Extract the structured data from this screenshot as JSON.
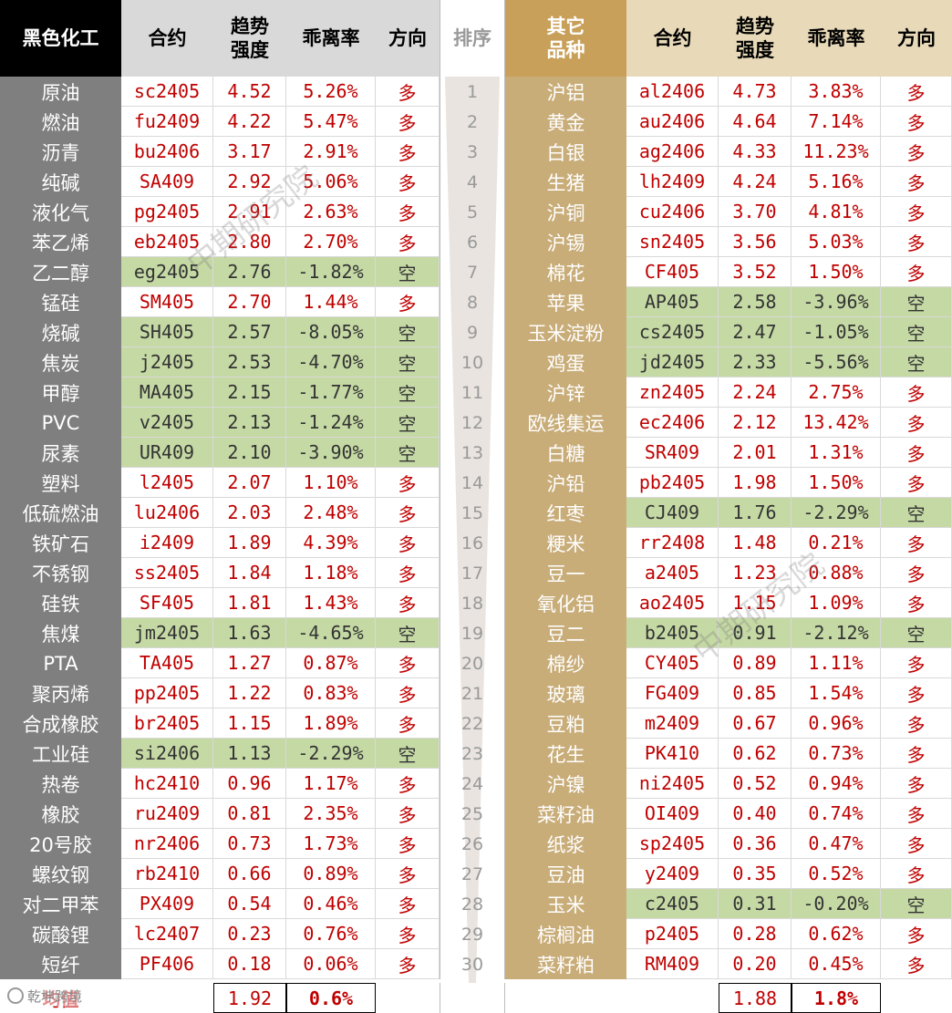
{
  "headers": {
    "cat1": "黑色化工",
    "contract": "合约",
    "strength_l1": "趋势",
    "strength_l2": "强度",
    "deviation": "乖离率",
    "direction": "方向",
    "rank": "排序",
    "cat2_l1": "其它",
    "cat2_l2": "品种"
  },
  "left_rows": [
    {
      "name": "原油",
      "contract": "sc2405",
      "strength": "4.52",
      "deviation": "5.26%",
      "direction": "多",
      "short": false
    },
    {
      "name": "燃油",
      "contract": "fu2409",
      "strength": "4.22",
      "deviation": "5.47%",
      "direction": "多",
      "short": false
    },
    {
      "name": "沥青",
      "contract": "bu2406",
      "strength": "3.17",
      "deviation": "2.91%",
      "direction": "多",
      "short": false
    },
    {
      "name": "纯碱",
      "contract": "SA409",
      "strength": "2.92",
      "deviation": "5.06%",
      "direction": "多",
      "short": false
    },
    {
      "name": "液化气",
      "contract": "pg2405",
      "strength": "2.91",
      "deviation": "2.63%",
      "direction": "多",
      "short": false
    },
    {
      "name": "苯乙烯",
      "contract": "eb2405",
      "strength": "2.80",
      "deviation": "2.70%",
      "direction": "多",
      "short": false
    },
    {
      "name": "乙二醇",
      "contract": "eg2405",
      "strength": "2.76",
      "deviation": "-1.82%",
      "direction": "空",
      "short": true
    },
    {
      "name": "锰硅",
      "contract": "SM405",
      "strength": "2.70",
      "deviation": "1.44%",
      "direction": "多",
      "short": false
    },
    {
      "name": "烧碱",
      "contract": "SH405",
      "strength": "2.57",
      "deviation": "-8.05%",
      "direction": "空",
      "short": true
    },
    {
      "name": "焦炭",
      "contract": "j2405",
      "strength": "2.53",
      "deviation": "-4.70%",
      "direction": "空",
      "short": true
    },
    {
      "name": "甲醇",
      "contract": "MA405",
      "strength": "2.15",
      "deviation": "-1.77%",
      "direction": "空",
      "short": true
    },
    {
      "name": "PVC",
      "contract": "v2405",
      "strength": "2.13",
      "deviation": "-1.24%",
      "direction": "空",
      "short": true
    },
    {
      "name": "尿素",
      "contract": "UR409",
      "strength": "2.10",
      "deviation": "-3.90%",
      "direction": "空",
      "short": true
    },
    {
      "name": "塑料",
      "contract": "l2405",
      "strength": "2.07",
      "deviation": "1.10%",
      "direction": "多",
      "short": false
    },
    {
      "name": "低硫燃油",
      "contract": "lu2406",
      "strength": "2.03",
      "deviation": "2.48%",
      "direction": "多",
      "short": false
    },
    {
      "name": "铁矿石",
      "contract": "i2409",
      "strength": "1.89",
      "deviation": "4.39%",
      "direction": "多",
      "short": false
    },
    {
      "name": "不锈钢",
      "contract": "ss2405",
      "strength": "1.84",
      "deviation": "1.18%",
      "direction": "多",
      "short": false
    },
    {
      "name": "硅铁",
      "contract": "SF405",
      "strength": "1.81",
      "deviation": "1.43%",
      "direction": "多",
      "short": false
    },
    {
      "name": "焦煤",
      "contract": "jm2405",
      "strength": "1.63",
      "deviation": "-4.65%",
      "direction": "空",
      "short": true
    },
    {
      "name": "PTA",
      "contract": "TA405",
      "strength": "1.27",
      "deviation": "0.87%",
      "direction": "多",
      "short": false
    },
    {
      "name": "聚丙烯",
      "contract": "pp2405",
      "strength": "1.22",
      "deviation": "0.83%",
      "direction": "多",
      "short": false
    },
    {
      "name": "合成橡胶",
      "contract": "br2405",
      "strength": "1.15",
      "deviation": "1.89%",
      "direction": "多",
      "short": false
    },
    {
      "name": "工业硅",
      "contract": "si2406",
      "strength": "1.13",
      "deviation": "-2.29%",
      "direction": "空",
      "short": true
    },
    {
      "name": "热卷",
      "contract": "hc2410",
      "strength": "0.96",
      "deviation": "1.17%",
      "direction": "多",
      "short": false
    },
    {
      "name": "橡胶",
      "contract": "ru2409",
      "strength": "0.81",
      "deviation": "2.35%",
      "direction": "多",
      "short": false
    },
    {
      "name": "20号胶",
      "contract": "nr2406",
      "strength": "0.73",
      "deviation": "1.73%",
      "direction": "多",
      "short": false
    },
    {
      "name": "螺纹钢",
      "contract": "rb2410",
      "strength": "0.66",
      "deviation": "0.89%",
      "direction": "多",
      "short": false
    },
    {
      "name": "对二甲苯",
      "contract": "PX409",
      "strength": "0.54",
      "deviation": "0.46%",
      "direction": "多",
      "short": false
    },
    {
      "name": "碳酸锂",
      "contract": "lc2407",
      "strength": "0.23",
      "deviation": "0.76%",
      "direction": "多",
      "short": false
    },
    {
      "name": "短纤",
      "contract": "PF406",
      "strength": "0.18",
      "deviation": "0.06%",
      "direction": "多",
      "short": false
    }
  ],
  "ranks": [
    "1",
    "2",
    "3",
    "4",
    "5",
    "6",
    "7",
    "8",
    "9",
    "10",
    "11",
    "12",
    "13",
    "14",
    "15",
    "16",
    "17",
    "18",
    "19",
    "20",
    "21",
    "22",
    "23",
    "24",
    "25",
    "26",
    "27",
    "28",
    "29",
    "30"
  ],
  "right_rows": [
    {
      "name": "沪铝",
      "contract": "al2406",
      "strength": "4.73",
      "deviation": "3.83%",
      "direction": "多",
      "short": false
    },
    {
      "name": "黄金",
      "contract": "au2406",
      "strength": "4.64",
      "deviation": "7.14%",
      "direction": "多",
      "short": false
    },
    {
      "name": "白银",
      "contract": "ag2406",
      "strength": "4.33",
      "deviation": "11.23%",
      "direction": "多",
      "short": false
    },
    {
      "name": "生猪",
      "contract": "lh2409",
      "strength": "4.24",
      "deviation": "5.16%",
      "direction": "多",
      "short": false
    },
    {
      "name": "沪铜",
      "contract": "cu2406",
      "strength": "3.70",
      "deviation": "4.81%",
      "direction": "多",
      "short": false
    },
    {
      "name": "沪锡",
      "contract": "sn2405",
      "strength": "3.56",
      "deviation": "5.03%",
      "direction": "多",
      "short": false
    },
    {
      "name": "棉花",
      "contract": "CF405",
      "strength": "3.52",
      "deviation": "1.50%",
      "direction": "多",
      "short": false
    },
    {
      "name": "苹果",
      "contract": "AP405",
      "strength": "2.58",
      "deviation": "-3.96%",
      "direction": "空",
      "short": true
    },
    {
      "name": "玉米淀粉",
      "contract": "cs2405",
      "strength": "2.47",
      "deviation": "-1.05%",
      "direction": "空",
      "short": true
    },
    {
      "name": "鸡蛋",
      "contract": "jd2405",
      "strength": "2.33",
      "deviation": "-5.56%",
      "direction": "空",
      "short": true
    },
    {
      "name": "沪锌",
      "contract": "zn2405",
      "strength": "2.24",
      "deviation": "2.75%",
      "direction": "多",
      "short": false
    },
    {
      "name": "欧线集运",
      "contract": "ec2406",
      "strength": "2.12",
      "deviation": "13.42%",
      "direction": "多",
      "short": false
    },
    {
      "name": "白糖",
      "contract": "SR409",
      "strength": "2.01",
      "deviation": "1.31%",
      "direction": "多",
      "short": false
    },
    {
      "name": "沪铅",
      "contract": "pb2405",
      "strength": "1.98",
      "deviation": "1.50%",
      "direction": "多",
      "short": false
    },
    {
      "name": "红枣",
      "contract": "CJ409",
      "strength": "1.76",
      "deviation": "-2.29%",
      "direction": "空",
      "short": true
    },
    {
      "name": "粳米",
      "contract": "rr2408",
      "strength": "1.48",
      "deviation": "0.21%",
      "direction": "多",
      "short": false
    },
    {
      "name": "豆一",
      "contract": "a2405",
      "strength": "1.23",
      "deviation": "0.88%",
      "direction": "多",
      "short": false
    },
    {
      "name": "氧化铝",
      "contract": "ao2405",
      "strength": "1.15",
      "deviation": "1.09%",
      "direction": "多",
      "short": false
    },
    {
      "name": "豆二",
      "contract": "b2405",
      "strength": "0.91",
      "deviation": "-2.12%",
      "direction": "空",
      "short": true
    },
    {
      "name": "棉纱",
      "contract": "CY405",
      "strength": "0.89",
      "deviation": "1.11%",
      "direction": "多",
      "short": false
    },
    {
      "name": "玻璃",
      "contract": "FG409",
      "strength": "0.85",
      "deviation": "1.54%",
      "direction": "多",
      "short": false
    },
    {
      "name": "豆粕",
      "contract": "m2409",
      "strength": "0.67",
      "deviation": "0.96%",
      "direction": "多",
      "short": false
    },
    {
      "name": "花生",
      "contract": "PK410",
      "strength": "0.62",
      "deviation": "0.73%",
      "direction": "多",
      "short": false
    },
    {
      "name": "沪镍",
      "contract": "ni2405",
      "strength": "0.52",
      "deviation": "0.94%",
      "direction": "多",
      "short": false
    },
    {
      "name": "菜籽油",
      "contract": "OI409",
      "strength": "0.40",
      "deviation": "0.74%",
      "direction": "多",
      "short": false
    },
    {
      "name": "纸浆",
      "contract": "sp2405",
      "strength": "0.36",
      "deviation": "0.47%",
      "direction": "多",
      "short": false
    },
    {
      "name": "豆油",
      "contract": "y2409",
      "strength": "0.35",
      "deviation": "0.52%",
      "direction": "多",
      "short": false
    },
    {
      "name": "玉米",
      "contract": "c2405",
      "strength": "0.31",
      "deviation": "-0.20%",
      "direction": "空",
      "short": true
    },
    {
      "name": "棕榈油",
      "contract": "p2405",
      "strength": "0.28",
      "deviation": "0.62%",
      "direction": "多",
      "short": false
    },
    {
      "name": "菜籽粕",
      "contract": "RM409",
      "strength": "0.20",
      "deviation": "0.45%",
      "direction": "多",
      "short": false
    }
  ],
  "footer": {
    "label": "均值",
    "left_strength": "1.92",
    "left_deviation": "0.6%",
    "right_strength": "1.88",
    "right_deviation": "1.8%"
  },
  "watermark": "中期研究院",
  "logo_text": "乾坤跨境",
  "colors": {
    "cat1_bg": "#7f7f7f",
    "cat2_bg": "#c9ad79",
    "header_left_bg": "#d9d9d9",
    "header_right_bg": "#e8d9b8",
    "short_green": "#c5d9a4",
    "value_red": "#c00000"
  }
}
